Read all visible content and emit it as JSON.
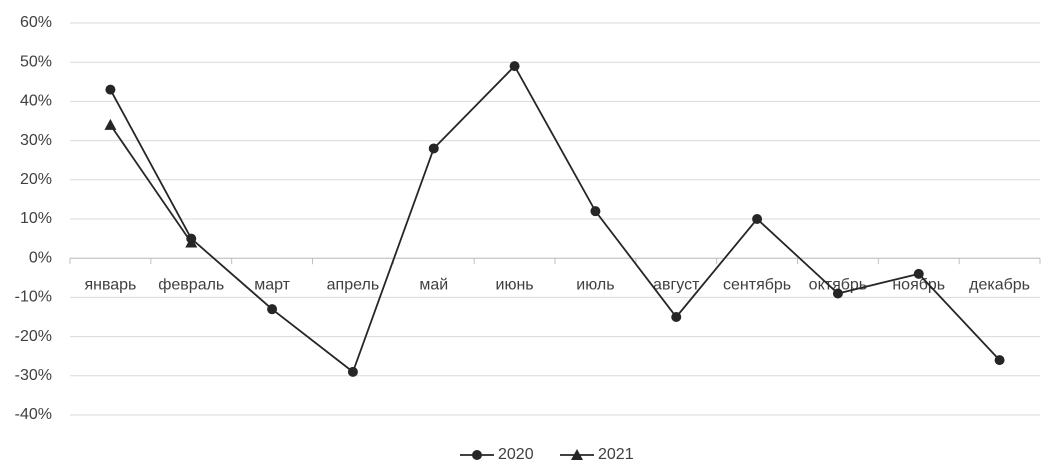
{
  "chart_data": {
    "type": "line",
    "categories": [
      "январь",
      "февраль",
      "март",
      "апрель",
      "май",
      "июнь",
      "июль",
      "август",
      "сентябрь",
      "октябрь",
      "ноябрь",
      "декабрь"
    ],
    "series": [
      {
        "name": "2020",
        "color": "#262626",
        "marker": "circle",
        "values": [
          43,
          5,
          -13,
          -29,
          28,
          49,
          12,
          -15,
          10,
          -9,
          -4,
          -26
        ]
      },
      {
        "name": "2021",
        "color": "#262626",
        "marker": "triangle",
        "values": [
          34,
          4,
          null,
          null,
          null,
          null,
          null,
          null,
          null,
          null,
          null,
          null
        ]
      }
    ],
    "ylim": [
      -40,
      60
    ],
    "yticks": [
      {
        "value": -40,
        "label": "-40%"
      },
      {
        "value": -30,
        "label": "-30%"
      },
      {
        "value": -20,
        "label": "-20%"
      },
      {
        "value": -10,
        "label": "-10%"
      },
      {
        "value": 0,
        "label": "0%"
      },
      {
        "value": 10,
        "label": "10%"
      },
      {
        "value": 20,
        "label": "20%"
      },
      {
        "value": 30,
        "label": "30%"
      },
      {
        "value": 40,
        "label": "40%"
      },
      {
        "value": 50,
        "label": "50%"
      },
      {
        "value": 60,
        "label": "60%"
      }
    ],
    "grid": true,
    "legend": "bottom"
  }
}
